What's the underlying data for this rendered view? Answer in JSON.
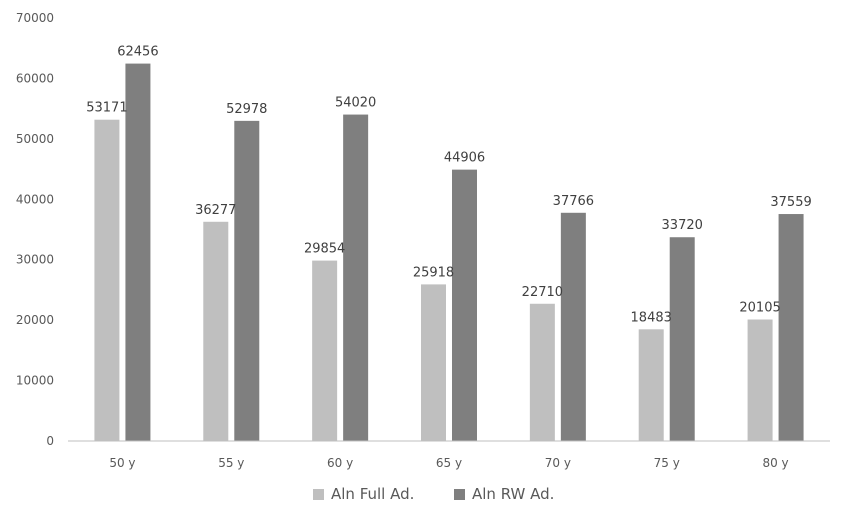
{
  "chart_data": {
    "type": "bar",
    "title": "",
    "xlabel": "",
    "ylabel": "",
    "categories": [
      "50 y",
      "55 y",
      "60 y",
      "65 y",
      "70 y",
      "75 y",
      "80 y"
    ],
    "series": [
      {
        "name": "Aln Full Ad.",
        "color": "#bfbfbf",
        "values": [
          53171,
          36277,
          29854,
          25918,
          22710,
          18483,
          20105
        ]
      },
      {
        "name": "Aln RW Ad.",
        "color": "#7f7f7f",
        "values": [
          62456,
          52978,
          54020,
          44906,
          37766,
          33720,
          37559
        ]
      }
    ],
    "ylim": [
      0,
      70000
    ],
    "yticks": [
      "0",
      "10000",
      "20000",
      "30000",
      "40000",
      "50000",
      "60000",
      "70000"
    ],
    "grid": false,
    "legend_position": "bottom-center",
    "data_labels": true
  }
}
